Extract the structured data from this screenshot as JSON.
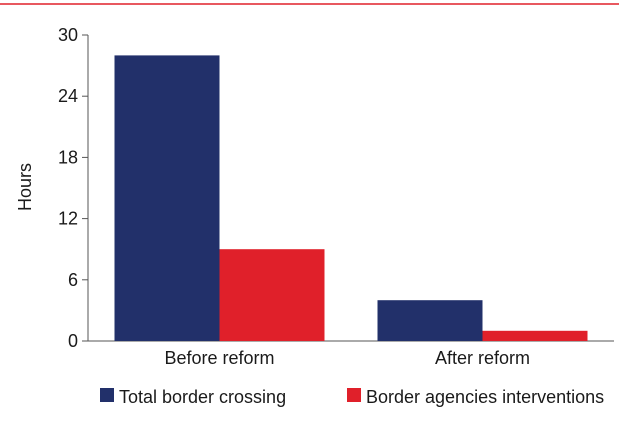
{
  "chart_data": {
    "type": "bar",
    "ylabel": "Hours",
    "xlabel": "",
    "ylim": [
      0,
      30
    ],
    "yticks": [
      0,
      6,
      12,
      18,
      24,
      30
    ],
    "categories": [
      "Before reform",
      "After reform"
    ],
    "series": [
      {
        "name": "Total border crossing",
        "values": [
          28,
          4
        ],
        "color": "#22306a"
      },
      {
        "name": "Border agencies interventions",
        "values": [
          9,
          1
        ],
        "color": "#e0202a"
      }
    ],
    "legend_position": "bottom",
    "grid": false,
    "accent_line_color": "#e0202a"
  }
}
